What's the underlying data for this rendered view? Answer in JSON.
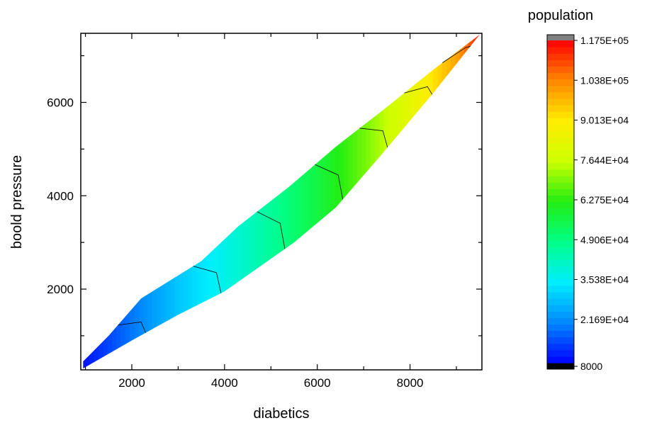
{
  "chart_data": {
    "type": "heatmap",
    "subtype": "filled-contour",
    "xlabel": "diabetics",
    "ylabel": "boold pressure",
    "xlim": [
      900,
      9550
    ],
    "ylim": [
      270,
      7480
    ],
    "x_ticks": [
      2000,
      4000,
      6000,
      8000
    ],
    "y_ticks": [
      2000,
      4000,
      6000
    ],
    "grid": false,
    "colorbar": {
      "title": "population",
      "min": 8000,
      "max": 117500,
      "labels": [
        "1.175E+05",
        "1.038E+05",
        "9.013E+04",
        "7.644E+04",
        "6.275E+04",
        "4.906E+04",
        "3.538E+04",
        "2.169E+04",
        "8000"
      ],
      "colors": [
        "#0000ff",
        "#0088ff",
        "#00eeff",
        "#00ff88",
        "#22ee11",
        "#ccff00",
        "#ffee00",
        "#ff8800",
        "#ff0000"
      ],
      "over_color": "#808080",
      "under_color": "#000000"
    },
    "series": [
      {
        "upper_boundary": [
          [
            950,
            450
          ],
          [
            1500,
            1000
          ],
          [
            2200,
            1800
          ],
          [
            3500,
            2600
          ],
          [
            4300,
            3350
          ],
          [
            5400,
            4200
          ],
          [
            6400,
            5050
          ],
          [
            7500,
            5900
          ],
          [
            8500,
            6700
          ],
          [
            9500,
            7450
          ]
        ],
        "lower_boundary": [
          [
            950,
            300
          ],
          [
            2000,
            900
          ],
          [
            3000,
            1450
          ],
          [
            4000,
            1950
          ],
          [
            5500,
            3000
          ],
          [
            6400,
            3750
          ],
          [
            7400,
            4900
          ],
          [
            8500,
            6200
          ],
          [
            9500,
            7450
          ]
        ],
        "values_along_x": [
          [
            1000,
            10000
          ],
          [
            2000,
            20000
          ],
          [
            3000,
            30000
          ],
          [
            4000,
            38000
          ],
          [
            5000,
            47000
          ],
          [
            6000,
            57000
          ],
          [
            7000,
            69000
          ],
          [
            8000,
            83000
          ],
          [
            9000,
            100000
          ],
          [
            9500,
            115000
          ]
        ]
      }
    ]
  }
}
